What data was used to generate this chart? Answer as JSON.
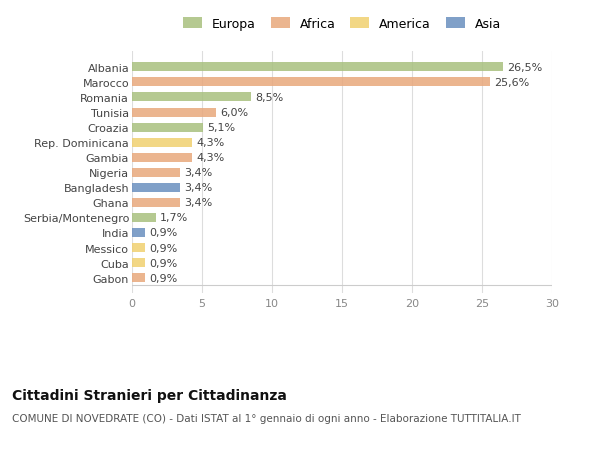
{
  "categories": [
    "Albania",
    "Marocco",
    "Romania",
    "Tunisia",
    "Croazia",
    "Rep. Dominicana",
    "Gambia",
    "Nigeria",
    "Bangladesh",
    "Ghana",
    "Serbia/Montenegro",
    "India",
    "Messico",
    "Cuba",
    "Gabon"
  ],
  "values": [
    26.5,
    25.6,
    8.5,
    6.0,
    5.1,
    4.3,
    4.3,
    3.4,
    3.4,
    3.4,
    1.7,
    0.9,
    0.9,
    0.9,
    0.9
  ],
  "labels": [
    "26,5%",
    "25,6%",
    "8,5%",
    "6,0%",
    "5,1%",
    "4,3%",
    "4,3%",
    "3,4%",
    "3,4%",
    "3,4%",
    "1,7%",
    "0,9%",
    "0,9%",
    "0,9%",
    "0,9%"
  ],
  "continents": [
    "Europa",
    "Africa",
    "Europa",
    "Africa",
    "Europa",
    "America",
    "Africa",
    "Africa",
    "Asia",
    "Africa",
    "Europa",
    "Asia",
    "America",
    "America",
    "Africa"
  ],
  "colors": {
    "Europa": "#a8c07e",
    "Africa": "#e8a87c",
    "America": "#f0d070",
    "Asia": "#6a8fbf"
  },
  "legend_order": [
    "Europa",
    "Africa",
    "America",
    "Asia"
  ],
  "title": "Cittadini Stranieri per Cittadinanza",
  "subtitle": "COMUNE DI NOVEDRATE (CO) - Dati ISTAT al 1° gennaio di ogni anno - Elaborazione TUTTITALIA.IT",
  "xlim": [
    0,
    30
  ],
  "xticks": [
    0,
    5,
    10,
    15,
    20,
    25,
    30
  ],
  "background_color": "#ffffff",
  "bar_height": 0.6,
  "label_fontsize": 8,
  "ytick_fontsize": 8,
  "xtick_fontsize": 8,
  "title_fontsize": 10,
  "subtitle_fontsize": 7.5
}
